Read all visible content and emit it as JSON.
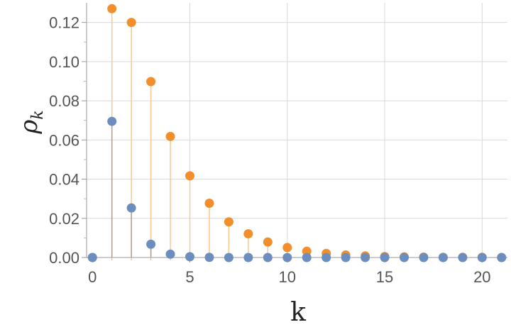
{
  "chart_data": {
    "type": "scatter",
    "title": "",
    "xlabel": "k",
    "ylabel": {
      "symbol": "ρ",
      "subscript": "k"
    },
    "xlim": [
      -0.3,
      21.3
    ],
    "ylim": [
      0,
      0.13
    ],
    "x_ticks": [
      0,
      5,
      10,
      15,
      20
    ],
    "x_tick_labels": [
      "0",
      "5",
      "10",
      "15",
      "20"
    ],
    "y_ticks": [
      0,
      0.02,
      0.04,
      0.06,
      0.08,
      0.1,
      0.12
    ],
    "y_tick_labels": [
      "0.00",
      "0.02",
      "0.04",
      "0.06",
      "0.08",
      "0.10",
      "0.12"
    ],
    "grid": true,
    "style": "stem",
    "series": [
      {
        "color": "#f28e2b",
        "stem_color": "#f9c98f",
        "x": [
          0,
          1,
          2,
          3,
          4,
          5,
          6,
          7,
          8,
          9,
          10,
          11,
          12,
          13,
          14,
          15,
          16,
          17,
          18,
          19,
          20,
          21
        ],
        "values": [
          0,
          0.127,
          0.12,
          0.0898,
          0.0618,
          0.0417,
          0.0277,
          0.0182,
          0.0121,
          0.0079,
          0.0051,
          0.0032,
          0.0021,
          0.0013,
          0.0008,
          0.0005,
          0.0003,
          0.0002,
          0.0001,
          0.0001,
          0.0001,
          0.0
        ]
      },
      {
        "color": "#6c8ebf",
        "stem_color": "#b0a090",
        "x": [
          0,
          1,
          2,
          3,
          4,
          5,
          6,
          7,
          8,
          9,
          10,
          11,
          12,
          13,
          14,
          15,
          16,
          17,
          18,
          19,
          20,
          21
        ],
        "values": [
          0,
          0.0695,
          0.0253,
          0.0068,
          0.0017,
          0.0004,
          0.0001,
          0,
          0,
          0,
          0,
          0,
          0,
          0,
          0,
          0,
          0,
          0,
          0,
          0,
          0,
          0
        ]
      }
    ]
  }
}
